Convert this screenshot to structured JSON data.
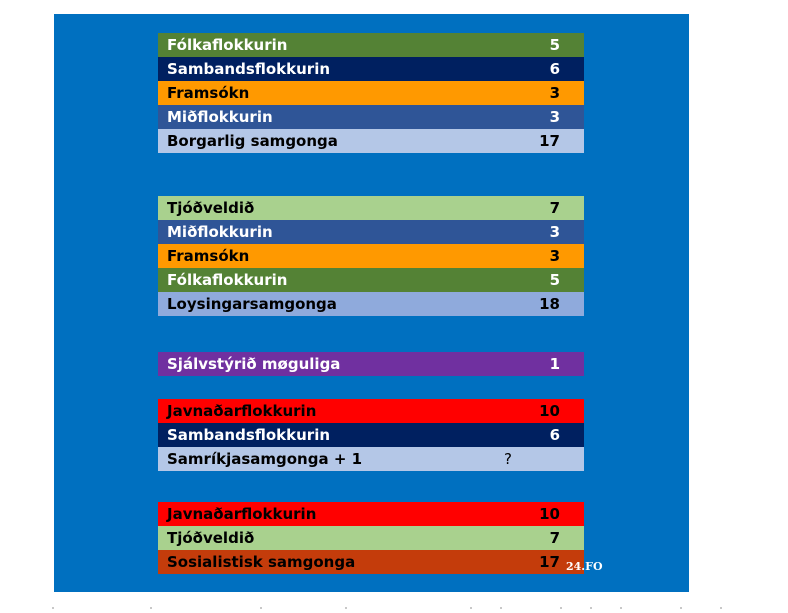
{
  "chart_data": {
    "type": "table",
    "groups": [
      {
        "rows": [
          {
            "label": "Fólkaflokkurin",
            "value": "5",
            "bg": "#548235",
            "fg": "#ffffff"
          },
          {
            "label": "Sambandsflokkurin",
            "value": "6",
            "bg": "#002060",
            "fg": "#ffffff"
          },
          {
            "label": "Framsókn",
            "value": "3",
            "bg": "#ff9900",
            "fg": "#000000"
          },
          {
            "label": "Miðflokkurin",
            "value": "3",
            "bg": "#2f5597",
            "fg": "#ffffff"
          },
          {
            "label": "Borgarlig samgonga",
            "value": "17",
            "bg": "#b4c7e7",
            "fg": "#000000"
          }
        ]
      },
      {
        "rows": [
          {
            "label": "Tjóðveldið",
            "value": "7",
            "bg": "#a9d18e",
            "fg": "#000000"
          },
          {
            "label": "Miðflokkurin",
            "value": "3",
            "bg": "#2f5597",
            "fg": "#ffffff"
          },
          {
            "label": "Framsókn",
            "value": "3",
            "bg": "#ff9900",
            "fg": "#000000"
          },
          {
            "label": "Fólkaflokkurin",
            "value": "5",
            "bg": "#548235",
            "fg": "#ffffff"
          },
          {
            "label": "Loysingarsamgonga",
            "value": "18",
            "bg": "#8faadc",
            "fg": "#000000"
          }
        ]
      },
      {
        "rows": [
          {
            "label": "Sjálvstýrið møguliga",
            "value": "1",
            "bg": "#7030a0",
            "fg": "#ffffff"
          }
        ]
      },
      {
        "rows": [
          {
            "label": "Javnaðarflokkurin",
            "value": "10",
            "bg": "#ff0000",
            "fg": "#000000"
          },
          {
            "label": "Sambandsflokkurin",
            "value": "6",
            "bg": "#002060",
            "fg": "#ffffff"
          },
          {
            "label": "Samríkjasamgonga + 1",
            "value": "",
            "extra": "?",
            "bg": "#b4c7e7",
            "fg": "#000000"
          }
        ]
      },
      {
        "rows": [
          {
            "label": "Javnaðarflokkurin",
            "value": "10",
            "bg": "#ff0000",
            "fg": "#000000"
          },
          {
            "label": "Tjóðveldið",
            "value": "7",
            "bg": "#a9d18e",
            "fg": "#000000"
          },
          {
            "label": "Sosialistisk samgonga",
            "value": "17",
            "bg": "#c43c0b",
            "fg": "#000000"
          }
        ]
      }
    ]
  },
  "watermark": "24.FO",
  "colors": {
    "panel": "#0070c0"
  }
}
